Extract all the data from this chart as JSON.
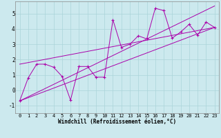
{
  "xlabel": "Windchill (Refroidissement éolien,°C)",
  "background_color": "#cce9ee",
  "grid_color": "#aad4d9",
  "line_color": "#aa00aa",
  "x_hours": [
    0,
    1,
    2,
    3,
    4,
    5,
    6,
    7,
    8,
    9,
    10,
    11,
    12,
    13,
    14,
    15,
    16,
    17,
    18,
    19,
    20,
    21,
    22,
    23
  ],
  "data_y": [
    -0.7,
    0.8,
    1.7,
    1.7,
    1.5,
    0.9,
    -0.65,
    1.55,
    1.55,
    0.85,
    0.85,
    4.6,
    2.8,
    3.0,
    3.55,
    3.35,
    5.35,
    5.2,
    3.4,
    3.8,
    4.3,
    3.6,
    4.45,
    4.1
  ],
  "line1_x": [
    0,
    23
  ],
  "line1_y": [
    -0.7,
    5.5
  ],
  "line2_x": [
    0,
    23
  ],
  "line2_y": [
    -0.7,
    4.1
  ],
  "line3_x": [
    0,
    23
  ],
  "line3_y": [
    1.7,
    4.1
  ],
  "ylim": [
    -1.5,
    5.8
  ],
  "xlim": [
    -0.5,
    23.5
  ],
  "yticks": [
    -1,
    0,
    1,
    2,
    3,
    4,
    5
  ],
  "xticks": [
    0,
    1,
    2,
    3,
    4,
    5,
    6,
    7,
    8,
    9,
    10,
    11,
    12,
    13,
    14,
    15,
    16,
    17,
    18,
    19,
    20,
    21,
    22,
    23
  ],
  "tick_fontsize": 5.0,
  "xlabel_fontsize": 5.5,
  "lw": 0.7
}
